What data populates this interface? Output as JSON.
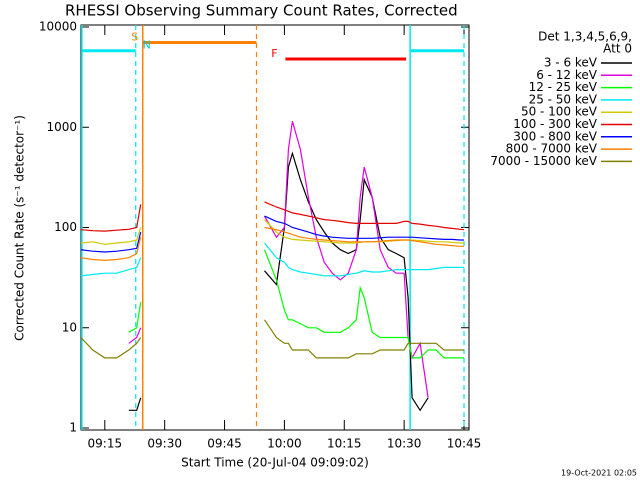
{
  "chart_data": {
    "type": "line",
    "title": "RHESSI Observing Summary Count Rates, Corrected",
    "xlabel": "Start Time (20-Jul-04 09:09:02)",
    "ylabel": "Corrected Count Rate (s⁻¹ detector⁻¹)",
    "footer": "19-Oct-2021 02:05",
    "legend_title": [
      "Det 1,3,4,5,6,9,",
      "Att 0"
    ],
    "legend": "upper right",
    "log_y": true,
    "xlim": [
      "09:09:02",
      "10:46:15"
    ],
    "xticks": [
      "09:15",
      "09:30",
      "09:45",
      "10:00",
      "10:15",
      "10:30",
      "10:45"
    ],
    "ylim": [
      1,
      10000
    ],
    "yticks": [
      1,
      10,
      100,
      1000,
      10000
    ],
    "x": [
      "09:09",
      "09:12",
      "09:15",
      "09:18",
      "09:21",
      "09:23",
      "09:24",
      "09:40",
      "09:55",
      "09:58",
      "10:00",
      "10:01",
      "10:02",
      "10:04",
      "10:06",
      "10:08",
      "10:10",
      "10:12",
      "10:14",
      "10:16",
      "10:18",
      "10:19",
      "10:20",
      "10:22",
      "10:24",
      "10:26",
      "10:28",
      "10:30",
      "10:31",
      "10:32",
      "10:34",
      "10:36",
      "10:38",
      "10:40",
      "10:42",
      "10:44",
      "10:45"
    ],
    "series": [
      {
        "name": "3 - 6 keV",
        "color": "#000000",
        "values": [
          null,
          null,
          null,
          null,
          1.5,
          1.5,
          2,
          null,
          37,
          27,
          100,
          400,
          550,
          300,
          180,
          120,
          90,
          70,
          60,
          55,
          60,
          120,
          300,
          200,
          80,
          60,
          55,
          50,
          20,
          2,
          1.5,
          2,
          null,
          null,
          null,
          null,
          null
        ]
      },
      {
        "name": "6 - 12 keV",
        "color": "#e000e0",
        "values": [
          null,
          null,
          null,
          null,
          7,
          8,
          10,
          null,
          130,
          80,
          100,
          600,
          1150,
          600,
          200,
          80,
          45,
          35,
          30,
          35,
          60,
          200,
          400,
          200,
          60,
          40,
          35,
          35,
          8,
          5,
          7,
          2,
          null,
          null,
          null,
          null,
          null
        ]
      },
      {
        "name": "12 - 25 keV",
        "color": "#00ff00",
        "values": [
          null,
          null,
          null,
          null,
          9,
          10,
          18,
          null,
          60,
          30,
          15,
          12,
          12,
          11,
          10,
          10,
          9,
          9,
          9,
          10,
          12,
          25,
          20,
          9,
          8,
          8,
          8,
          8,
          8,
          5,
          5,
          6,
          6,
          5,
          5,
          5,
          5
        ]
      },
      {
        "name": "25 - 50 keV",
        "color": "#00e8f0",
        "values": [
          33,
          34,
          35,
          35,
          38,
          40,
          50,
          null,
          70,
          50,
          45,
          40,
          38,
          36,
          35,
          34,
          33,
          33,
          33,
          34,
          35,
          36,
          37,
          36,
          36,
          37,
          38,
          38,
          38,
          38,
          38,
          38,
          39,
          40,
          40,
          40,
          40
        ]
      },
      {
        "name": "50 - 100 keV",
        "color": "#d0c800",
        "values": [
          70,
          72,
          68,
          70,
          72,
          75,
          100,
          null,
          120,
          90,
          80,
          78,
          76,
          75,
          74,
          73,
          72,
          71,
          70,
          70,
          70,
          71,
          72,
          72,
          72,
          73,
          74,
          75,
          75,
          75,
          74,
          73,
          72,
          72,
          71,
          70,
          70
        ]
      },
      {
        "name": "100 - 300 keV",
        "color": "#e00000",
        "values": [
          95,
          93,
          92,
          94,
          96,
          100,
          170,
          null,
          180,
          160,
          150,
          145,
          140,
          135,
          130,
          125,
          120,
          118,
          115,
          112,
          110,
          110,
          110,
          110,
          110,
          110,
          110,
          115,
          115,
          110,
          108,
          105,
          103,
          100,
          98,
          96,
          95
        ]
      },
      {
        "name": "300 - 800 keV",
        "color": "#0000ff",
        "values": [
          60,
          58,
          57,
          58,
          60,
          62,
          90,
          null,
          130,
          115,
          110,
          105,
          100,
          95,
          90,
          85,
          82,
          80,
          79,
          78,
          78,
          78,
          78,
          78,
          79,
          80,
          80,
          80,
          80,
          80,
          79,
          78,
          77,
          76,
          76,
          75,
          75
        ]
      },
      {
        "name": "800 - 7000 keV",
        "color": "#ff8000",
        "values": [
          50,
          48,
          47,
          48,
          50,
          55,
          80,
          null,
          100,
          95,
          90,
          88,
          85,
          80,
          78,
          76,
          75,
          74,
          73,
          72,
          72,
          72,
          72,
          72,
          73,
          74,
          75,
          75,
          75,
          74,
          72,
          70,
          68,
          67,
          66,
          65,
          65
        ]
      },
      {
        "name": "7000 - 15000 keV",
        "color": "#808000",
        "values": [
          8,
          6,
          5,
          5,
          6,
          7,
          8,
          null,
          12,
          8,
          7,
          7,
          6,
          6,
          6,
          5,
          5,
          5,
          5,
          5,
          5.5,
          5.5,
          5.5,
          5.5,
          6,
          6,
          6,
          6,
          7,
          7,
          7,
          7,
          7,
          6,
          6,
          6,
          6
        ]
      }
    ],
    "intervals": [
      {
        "start": "09:09:15",
        "end": "09:22:45",
        "level": 5800,
        "color": "#00e8f0",
        "edges": true
      },
      {
        "start": "10:31:30",
        "end": "10:45:00",
        "level": 5800,
        "color": "#00e8f0",
        "edges": true
      },
      {
        "start": "09:24:30",
        "end": "09:53:00",
        "level": 7000,
        "color": "#ff8000",
        "edges": true
      },
      {
        "start": "10:00:15",
        "end": "10:30:30",
        "level": 4800,
        "color": "#ff0000",
        "edges": false
      }
    ],
    "annotations": [
      {
        "text": "S",
        "x": "09:22:30",
        "y": 7000,
        "color": "#ff8000"
      },
      {
        "text": "N",
        "x": "09:25:30",
        "y": 5800,
        "color": "#00c8d0"
      },
      {
        "text": "F",
        "x": "09:57:30",
        "y": 4800,
        "color": "#ff0000"
      }
    ]
  }
}
